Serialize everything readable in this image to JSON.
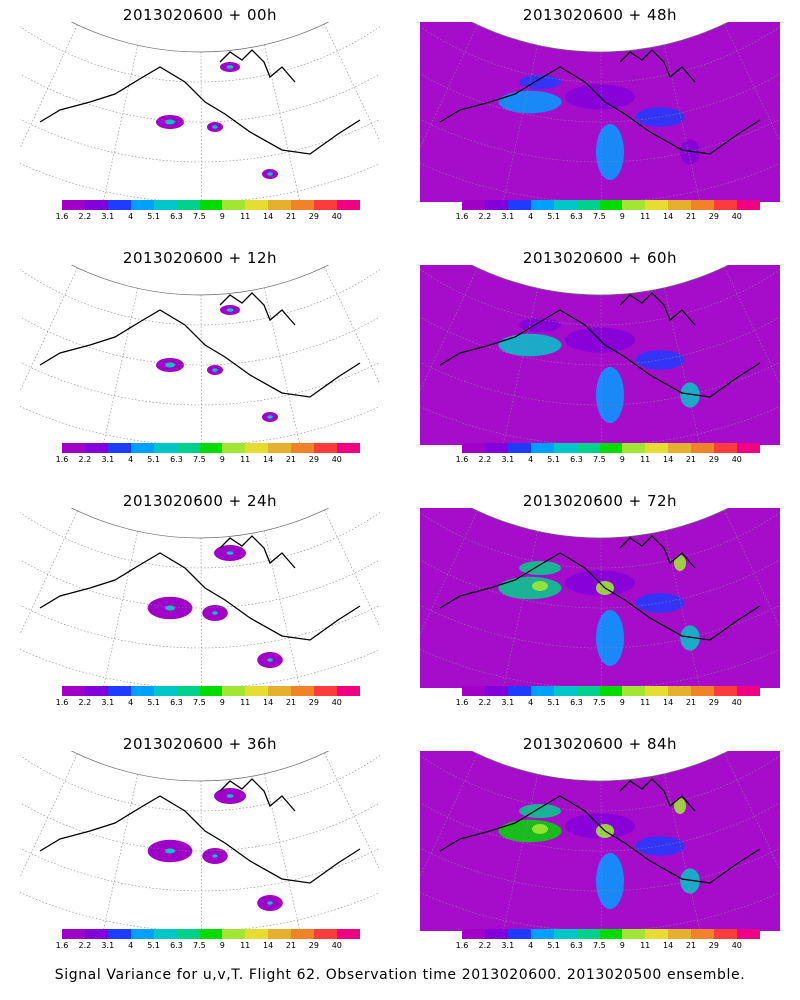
{
  "colorbar": {
    "colors": [
      "#a000c8",
      "#8200dc",
      "#1e3cff",
      "#00a0ff",
      "#00c8c8",
      "#00d28c",
      "#00dc00",
      "#a0e632",
      "#e6dc32",
      "#e6af2d",
      "#f08228",
      "#fa3c3c",
      "#f00082"
    ],
    "labels": [
      "1.6",
      "2.2",
      "3.1",
      "4",
      "5.1",
      "6.3",
      "7.5",
      "9",
      "11",
      "14",
      "21",
      "29",
      "40"
    ]
  },
  "panels": [
    {
      "title": "2013020600 + 00h",
      "intensity": 0
    },
    {
      "title": "2013020600 + 48h",
      "intensity": 2
    },
    {
      "title": "2013020600 + 12h",
      "intensity": 0
    },
    {
      "title": "2013020600 + 60h",
      "intensity": 3
    },
    {
      "title": "2013020600 + 24h",
      "intensity": 1
    },
    {
      "title": "2013020600 + 72h",
      "intensity": 4
    },
    {
      "title": "2013020600 + 36h",
      "intensity": 1
    },
    {
      "title": "2013020600 + 84h",
      "intensity": 5
    }
  ],
  "footer": "Signal Variance for u,v,T. Flight 62. Observation time 2013020600. 2013020500 ensemble."
}
